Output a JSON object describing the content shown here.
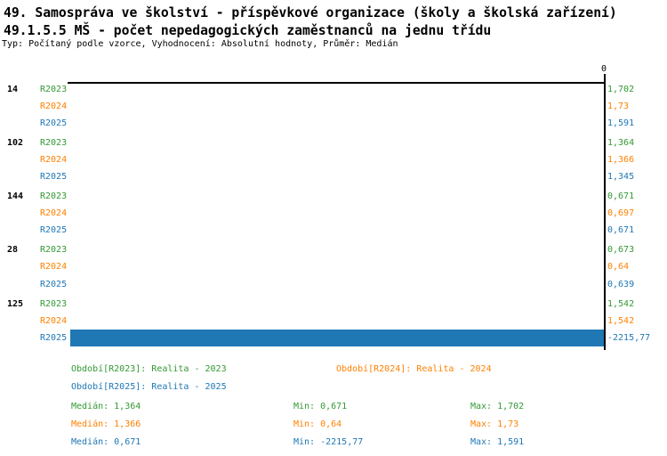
{
  "header": {
    "title": "49. Samospráva ve školství - příspěvkové organizace (školy a školská zařízení)",
    "subtitle": "49.1.5.5 MŠ - počet nepedagogických zaměstnanců na jednu třídu",
    "meta": "Typ: Počítaný podle vzorce, Vyhodnocení: Absolutní hodnoty, Průměr: Medián"
  },
  "colors": {
    "series": {
      "R2023": "#339933",
      "R2024": "#FF8000",
      "R2025": "#1F77B4"
    },
    "bar": "#1F77B4",
    "axis": "#000000"
  },
  "chart_data": {
    "type": "bar",
    "orientation": "horizontal",
    "title": "49.1.5.5 MŠ - počet nepedagogických zaměstnanců na jednu třídu",
    "axis_top_label": "0",
    "xlim": [
      -2215.77,
      0
    ],
    "grid": false,
    "legend_position": "bottom",
    "series_names": [
      "R2023",
      "R2024",
      "R2025"
    ],
    "groups": [
      {
        "id": "14",
        "labels": [
          "1,702",
          "1,73",
          "1,591"
        ],
        "values": [
          1.702,
          1.73,
          1.591
        ]
      },
      {
        "id": "102",
        "labels": [
          "1,364",
          "1,366",
          "1,345"
        ],
        "values": [
          1.364,
          1.366,
          1.345
        ]
      },
      {
        "id": "144",
        "labels": [
          "0,671",
          "0,697",
          "0,671"
        ],
        "values": [
          0.671,
          0.697,
          0.671
        ]
      },
      {
        "id": "28",
        "labels": [
          "0,673",
          "0,64",
          "0,639"
        ],
        "values": [
          0.673,
          0.64,
          0.639
        ]
      },
      {
        "id": "125",
        "labels": [
          "1,542",
          "1,542",
          "-2215,77"
        ],
        "values": [
          1.542,
          1.542,
          -2215.77
        ]
      }
    ]
  },
  "legend": [
    {
      "series": "R2023",
      "text": "Období[R2023]: Realita - 2023"
    },
    {
      "series": "R2024",
      "text": "Období[R2024]: Realita - 2024"
    },
    {
      "series": "R2025",
      "text": "Období[R2025]: Realita - 2025"
    }
  ],
  "stats": [
    {
      "series": "R2023",
      "median": "Medián: 1,364",
      "min": "Min: 0,671",
      "max": "Max: 1,702"
    },
    {
      "series": "R2024",
      "median": "Medián: 1,366",
      "min": "Min: 0,64",
      "max": "Max: 1,73"
    },
    {
      "series": "R2025",
      "median": "Medián: 0,671",
      "min": "Min: -2215,77",
      "max": "Max: 1,591"
    }
  ]
}
